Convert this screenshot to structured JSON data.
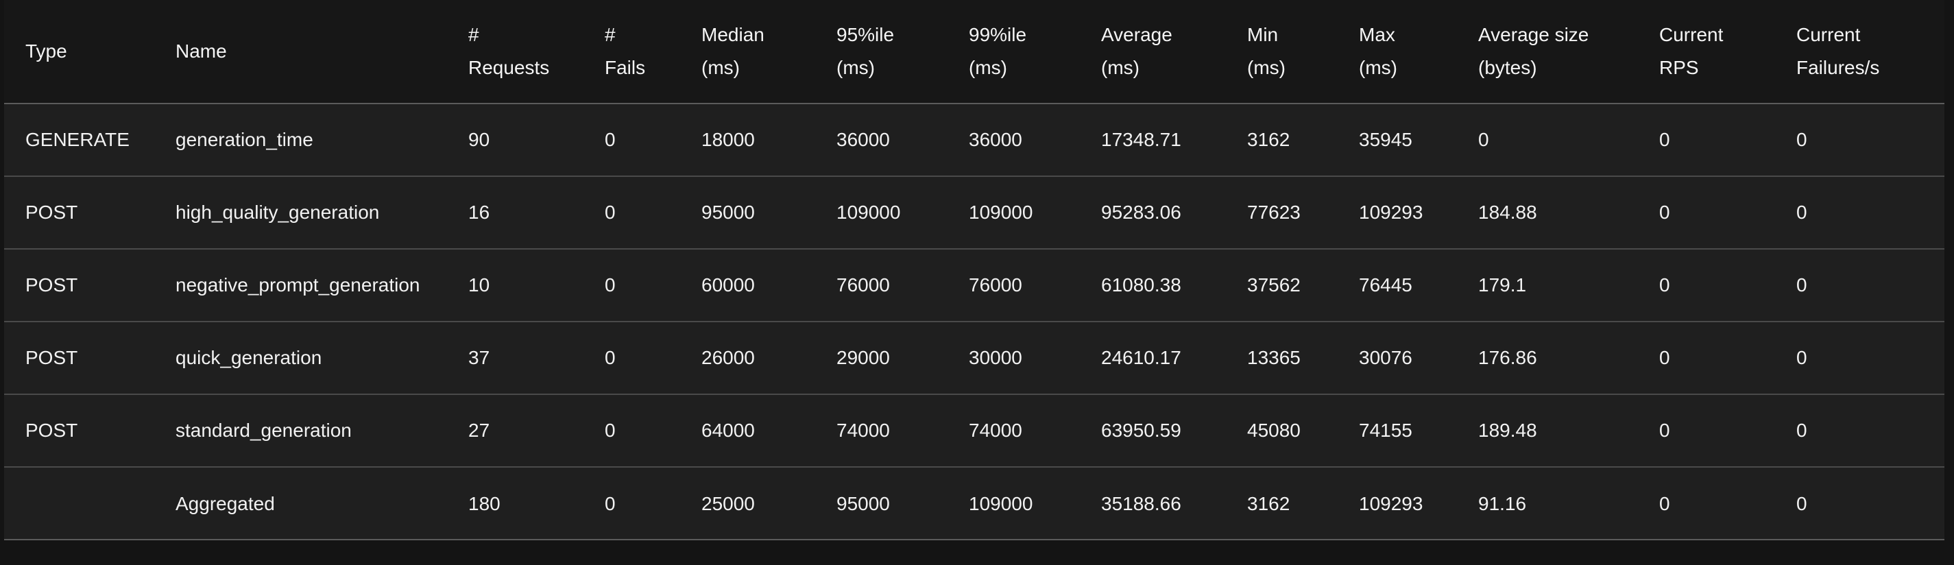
{
  "headers": [
    {
      "line1": "Type",
      "line2": ""
    },
    {
      "line1": "Name",
      "line2": ""
    },
    {
      "line1": "#",
      "line2": "Requests"
    },
    {
      "line1": "#",
      "line2": "Fails"
    },
    {
      "line1": "Median",
      "line2": "(ms)"
    },
    {
      "line1": "95%ile",
      "line2": "(ms)"
    },
    {
      "line1": "99%ile",
      "line2": "(ms)"
    },
    {
      "line1": "Average",
      "line2": "(ms)"
    },
    {
      "line1": "Min",
      "line2": "(ms)"
    },
    {
      "line1": "Max",
      "line2": "(ms)"
    },
    {
      "line1": "Average size",
      "line2": "(bytes)"
    },
    {
      "line1": "Current",
      "line2": "RPS"
    },
    {
      "line1": "Current",
      "line2": "Failures/s"
    }
  ],
  "rows": [
    [
      "GENERATE",
      "generation_time",
      "90",
      "0",
      "18000",
      "36000",
      "36000",
      "17348.71",
      "3162",
      "35945",
      "0",
      "0",
      "0"
    ],
    [
      "POST",
      "high_quality_generation",
      "16",
      "0",
      "95000",
      "109000",
      "109000",
      "95283.06",
      "77623",
      "109293",
      "184.88",
      "0",
      "0"
    ],
    [
      "POST",
      "negative_prompt_generation",
      "10",
      "0",
      "60000",
      "76000",
      "76000",
      "61080.38",
      "37562",
      "76445",
      "179.1",
      "0",
      "0"
    ],
    [
      "POST",
      "quick_generation",
      "37",
      "0",
      "26000",
      "29000",
      "30000",
      "24610.17",
      "13365",
      "30076",
      "176.86",
      "0",
      "0"
    ],
    [
      "POST",
      "standard_generation",
      "27",
      "0",
      "64000",
      "74000",
      "74000",
      "63950.59",
      "45080",
      "74155",
      "189.48",
      "0",
      "0"
    ],
    [
      "",
      "Aggregated",
      "180",
      "0",
      "25000",
      "95000",
      "109000",
      "35188.66",
      "3162",
      "109293",
      "91.16",
      "0",
      "0"
    ]
  ]
}
